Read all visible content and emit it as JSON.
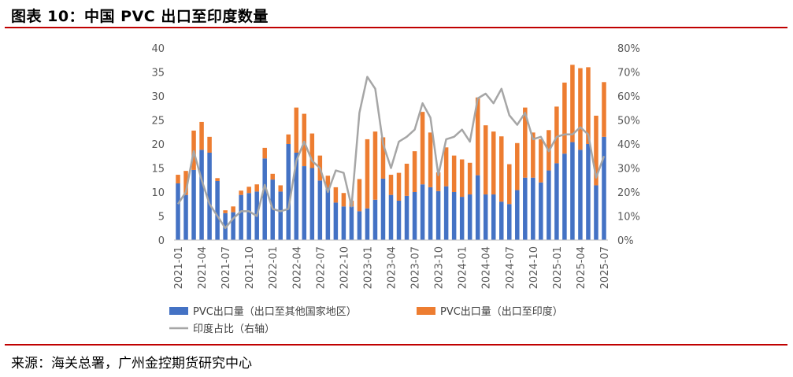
{
  "header": {
    "title": "图表 10：中国 PVC 出口至印度数量"
  },
  "footer": {
    "source": "来源：海关总署，广州金控期货研究中心"
  },
  "chart_data": {
    "type": "bar",
    "stacked": true,
    "title": "图表 10：中国 PVC 出口至印度数量",
    "categories": [
      "2021-01",
      "2021-02",
      "2021-03",
      "2021-04",
      "2021-05",
      "2021-06",
      "2021-07",
      "2021-08",
      "2021-09",
      "2021-10",
      "2021-11",
      "2021-12",
      "2022-01",
      "2022-02",
      "2022-03",
      "2022-04",
      "2022-05",
      "2022-06",
      "2022-07",
      "2022-08",
      "2022-09",
      "2022-10",
      "2022-11",
      "2022-12",
      "2023-01",
      "2023-02",
      "2023-03",
      "2023-04",
      "2023-05",
      "2023-06",
      "2023-07",
      "2023-08",
      "2023-09",
      "2023-10",
      "2023-11",
      "2023-12",
      "2024-01",
      "2024-02",
      "2024-03",
      "2024-04",
      "2024-05",
      "2024-06",
      "2024-07",
      "2024-08",
      "2024-09",
      "2024-10",
      "2024-11",
      "2024-12",
      "2025-01",
      "2025-02",
      "2025-03",
      "2025-04",
      "2025-05",
      "2025-06",
      "2025-07"
    ],
    "x_tick_labels": [
      "2021-01",
      "2021-04",
      "2021-07",
      "2021-10",
      "2022-01",
      "2022-04",
      "2022-07",
      "2022-10",
      "2023-01",
      "2023-04",
      "2023-07",
      "2023-10",
      "2024-01",
      "2024-04",
      "2024-07",
      "2024-10",
      "2025-01",
      "2025-04",
      "2025-07"
    ],
    "series": [
      {
        "name": "PVC出口量（出口至其他国家地区）",
        "type": "bar",
        "axis": "left",
        "color": "#4472c4",
        "values": [
          11.8,
          9.4,
          14.6,
          18.8,
          18.2,
          12.3,
          5.6,
          5.8,
          9.4,
          9.8,
          10.1,
          17.0,
          12.6,
          10.1,
          20.0,
          18.2,
          15.4,
          15.0,
          12.4,
          10.9,
          7.8,
          7.0,
          7.0,
          6.0,
          6.6,
          8.4,
          12.8,
          9.4,
          8.2,
          9.2,
          10.0,
          11.6,
          11.0,
          10.2,
          11.2,
          10.0,
          9.0,
          9.5,
          13.5,
          9.5,
          9.5,
          8.0,
          7.5,
          10.4,
          13.0,
          13.0,
          12.0,
          14.5,
          16.0,
          18.0,
          20.4,
          18.8,
          20.0,
          11.4,
          21.5
        ]
      },
      {
        "name": "PVC出口量（出口至印度）",
        "type": "bar",
        "axis": "left",
        "color": "#ed7d31",
        "values": [
          1.8,
          5.0,
          8.2,
          5.8,
          3.3,
          0.6,
          0.6,
          1.2,
          0.9,
          1.3,
          1.5,
          2.2,
          1.2,
          1.3,
          2.0,
          9.4,
          10.9,
          7.2,
          5.2,
          2.5,
          3.2,
          2.8,
          1.2,
          6.7,
          14.4,
          14.2,
          8.6,
          4.2,
          5.8,
          6.7,
          8.5,
          15.1,
          11.4,
          3.9,
          8.1,
          7.6,
          7.8,
          6.6,
          16.2,
          14.4,
          13.1,
          13.6,
          8.3,
          9.8,
          14.6,
          9.4,
          9.0,
          8.4,
          11.8,
          14.8,
          16.1,
          17.0,
          16.0,
          14.5,
          11.4
        ]
      },
      {
        "name": "印度占比（右轴）",
        "type": "line",
        "axis": "right",
        "color": "#a6a6a6",
        "unit": "%",
        "values": [
          15,
          20,
          37,
          25,
          15,
          10,
          5,
          9,
          12,
          12,
          10,
          23,
          13,
          12,
          13,
          33,
          41,
          33,
          30,
          20,
          29,
          28,
          14,
          53,
          68,
          63,
          40,
          30,
          41,
          43,
          46,
          57,
          51,
          27,
          42,
          43,
          46,
          41,
          59,
          61,
          57,
          63,
          52,
          48,
          53,
          42,
          43,
          37,
          43,
          44,
          44,
          47,
          44,
          26,
          35
        ]
      }
    ],
    "y_left": {
      "min": 0,
      "max": 40,
      "ticks": [
        0,
        5,
        10,
        15,
        20,
        25,
        30,
        35,
        40
      ]
    },
    "y_right": {
      "min": 0,
      "max": 80,
      "ticks": [
        "0%",
        "10%",
        "20%",
        "30%",
        "40%",
        "50%",
        "60%",
        "70%",
        "80%"
      ]
    },
    "legend_position": "bottom",
    "grid": false
  }
}
